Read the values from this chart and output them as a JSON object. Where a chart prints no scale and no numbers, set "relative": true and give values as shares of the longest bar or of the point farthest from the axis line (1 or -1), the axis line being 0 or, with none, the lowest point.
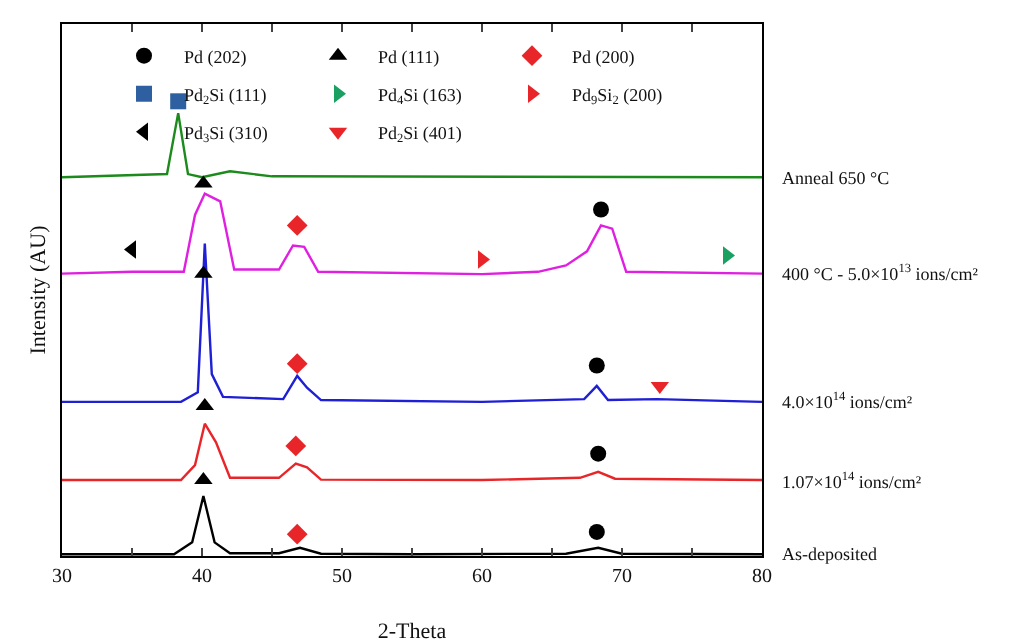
{
  "chart_data": {
    "type": "line",
    "relative": true,
    "xlabel": "2-Theta",
    "ylabel": "Intensity (AU)",
    "xlim": [
      30,
      80
    ],
    "xticks": [
      30,
      {
        "value": 35,
        "label": null
      },
      40,
      {
        "value": 45,
        "label": null
      },
      50,
      {
        "value": 55,
        "label": null
      },
      60,
      {
        "value": 65,
        "label": null
      },
      70,
      {
        "value": 75,
        "label": null
      },
      80
    ],
    "grid": false,
    "legend": "top",
    "tick_labels": "x",
    "series": [
      {
        "name": "As-deposited",
        "color": "#000000",
        "x": [
          30,
          38,
          39.3,
          40.1,
          40.9,
          42,
          45.5,
          47,
          48.5,
          55,
          66,
          68.3,
          70,
          80
        ],
        "values": [
          0.004,
          0.004,
          0.03,
          0.132,
          0.03,
          0.006,
          0.006,
          0.018,
          0.005,
          0.004,
          0.005,
          0.018,
          0.005,
          0.004
        ]
      },
      {
        "name": "1.07×10$^{14}$ ions/cm²",
        "color": "#e8262a",
        "x": [
          30,
          38.5,
          39.5,
          40.2,
          41,
          42,
          45.5,
          46.7,
          47.5,
          48.5,
          60,
          67,
          68.3,
          69.5,
          80
        ],
        "values": [
          0.167,
          0.167,
          0.2,
          0.291,
          0.25,
          0.172,
          0.172,
          0.203,
          0.195,
          0.168,
          0.167,
          0.172,
          0.185,
          0.17,
          0.167
        ]
      },
      {
        "name": "4.0×10$^{14}$ ions/cm²",
        "color": "#1f1fd6",
        "x": [
          30,
          38.5,
          39.7,
          40.2,
          40.7,
          41.5,
          45.8,
          46.8,
          47.5,
          48.5,
          60,
          67.3,
          68.2,
          69,
          72.5,
          80
        ],
        "values": [
          0.339,
          0.339,
          0.36,
          0.687,
          0.4,
          0.35,
          0.345,
          0.396,
          0.37,
          0.343,
          0.339,
          0.345,
          0.374,
          0.343,
          0.345,
          0.339
        ]
      },
      {
        "name": "400 °C - 5.0×10$^{13}$ ions/cm²",
        "color": "#e020e0",
        "x": [
          30,
          35,
          38.7,
          39.5,
          40.2,
          41.3,
          42.3,
          45.5,
          46.5,
          47.3,
          48.3,
          60,
          64,
          66,
          67.5,
          68.5,
          69.3,
          70.3,
          80
        ],
        "values": [
          0.621,
          0.625,
          0.625,
          0.75,
          0.797,
          0.78,
          0.63,
          0.63,
          0.683,
          0.68,
          0.625,
          0.62,
          0.625,
          0.639,
          0.67,
          0.727,
          0.72,
          0.625,
          0.621
        ]
      },
      {
        "name": "Anneal 650 °C",
        "color": "#1c8a1c",
        "x": [
          30,
          37.5,
          38.3,
          39,
          40,
          42,
          45,
          80
        ],
        "values": [
          0.833,
          0.84,
          0.974,
          0.84,
          0.833,
          0.846,
          0.835,
          0.833
        ]
      },
      {
        "type": "scatter",
        "name": "Pd (202)",
        "color": "#000000",
        "marker": "circle",
        "x": [
          68.2,
          68.3,
          68.2,
          68.5
        ],
        "values": [
          0.053,
          0.225,
          0.419,
          0.762
        ]
      },
      {
        "type": "scatter",
        "name": "Pd (111)",
        "color": "#000000",
        "marker": "triangle",
        "x": [
          40.1,
          40.2,
          40.1,
          40.1
        ],
        "values": [
          0.167,
          0.33,
          0.621,
          0.819
        ]
      },
      {
        "type": "scatter",
        "name": "Pd (200)",
        "color": "#e8262a",
        "marker": "diamond",
        "x": [
          46.8,
          46.7,
          46.8,
          46.8
        ],
        "values": [
          0.048,
          0.242,
          0.423,
          0.727
        ]
      },
      {
        "type": "scatter",
        "name": "Pd$_{2}$Si (111)",
        "color": "#2e5fa0",
        "marker": "square",
        "x": [
          38.3
        ],
        "values": [
          1.0
        ]
      },
      {
        "type": "scatter",
        "name": "Pd$_{4}$Si (163)",
        "color": "#1aa060",
        "marker": "triangle-right",
        "x": [
          77.5
        ],
        "values": [
          0.661
        ]
      },
      {
        "type": "scatter",
        "name": "Pd$_{9}$Si$_{2}$ (200)",
        "color": "#e8262a",
        "marker": "triangle-right",
        "x": [
          60
        ],
        "values": [
          0.652
        ]
      },
      {
        "type": "scatter",
        "name": "Pd$_{3}$Si (310)",
        "color": "#000000",
        "marker": "triangle-left",
        "x": [
          35
        ],
        "values": [
          0.674
        ]
      },
      {
        "type": "scatter",
        "name": "Pd$_{2}$Si (401)",
        "color": "#e8262a",
        "marker": "triangle-down",
        "x": [
          72.7
        ],
        "values": [
          0.374
        ]
      }
    ]
  }
}
